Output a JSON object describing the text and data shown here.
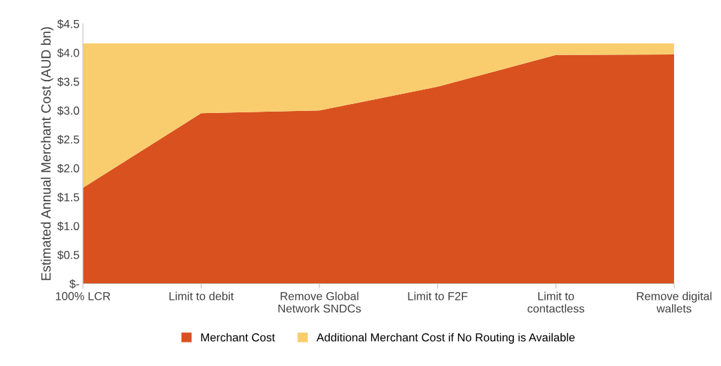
{
  "chart_data": {
    "type": "area",
    "stacked": true,
    "ylabel": "Estimated Annual Merchant Cost (AUD bn)",
    "categories": [
      "100% LCR",
      "Limit to debit",
      "Remove Global\nNetwork SNDCs",
      "Limit to F2F",
      "Limit to\ncontactless",
      "Remove digital\nwallets"
    ],
    "series": [
      {
        "name": "Merchant Cost",
        "color": "#d9511f",
        "values": [
          1.66,
          2.95,
          3.0,
          3.41,
          3.96,
          3.97
        ]
      },
      {
        "name": "Additional Merchant Cost if No Routing is Available",
        "color": "#f9cd6e",
        "values": [
          2.5,
          1.21,
          1.16,
          0.75,
          0.2,
          0.19
        ]
      }
    ],
    "ylim": [
      0,
      4.5
    ],
    "yticks": [
      {
        "value": 0,
        "label": "$-"
      },
      {
        "value": 0.5,
        "label": "$0.5"
      },
      {
        "value": 1.0,
        "label": "$1.0"
      },
      {
        "value": 1.5,
        "label": "$1.5"
      },
      {
        "value": 2.0,
        "label": "$2.0"
      },
      {
        "value": 2.5,
        "label": "$2.5"
      },
      {
        "value": 3.0,
        "label": "$3.0"
      },
      {
        "value": 3.5,
        "label": "$3.5"
      },
      {
        "value": 4.0,
        "label": "$4.0"
      },
      {
        "value": 4.5,
        "label": "$4.5"
      }
    ],
    "legend": "bottom",
    "grid": false
  }
}
